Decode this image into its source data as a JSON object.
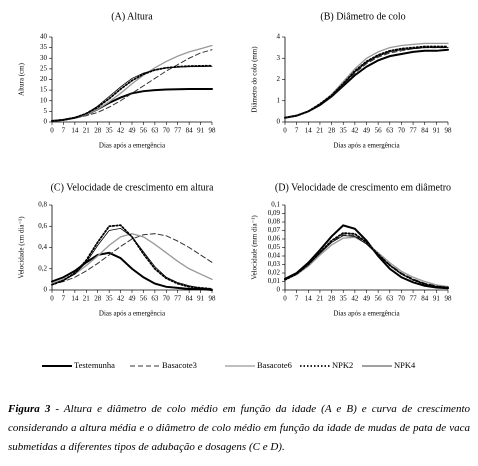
{
  "chart_data": [
    {
      "type": "line",
      "title": "(A) Altura",
      "x_label": "Dias após a emergência",
      "y_label": "Altura (cm)",
      "x": [
        0,
        7,
        14,
        21,
        28,
        35,
        42,
        49,
        56,
        63,
        70,
        77,
        84,
        91,
        98
      ],
      "xlim": [
        0,
        98
      ],
      "xticks": [
        0,
        7,
        14,
        21,
        28,
        35,
        42,
        49,
        56,
        63,
        70,
        77,
        84,
        91,
        98
      ],
      "ylim": [
        0,
        40
      ],
      "yticks": [
        0,
        5,
        10,
        15,
        20,
        25,
        30,
        35,
        40
      ],
      "series": [
        {
          "name": "Testemunha",
          "color": "#000000",
          "style": "solid",
          "linewidth": 2,
          "values": [
            0.5,
            1,
            2,
            3.5,
            6,
            9,
            11.5,
            13.5,
            14.5,
            15,
            15.3,
            15.4,
            15.5,
            15.5,
            15.5
          ]
        },
        {
          "name": "Basacote3",
          "color": "#333333",
          "style": "dashed",
          "linewidth": 1,
          "values": [
            0.5,
            1,
            1.8,
            3,
            4.5,
            7,
            10,
            13.5,
            17,
            20.5,
            24,
            27,
            30,
            32.5,
            34
          ]
        },
        {
          "name": "Basacote6",
          "color": "#999999",
          "style": "solid",
          "linewidth": 1.3,
          "values": [
            0.5,
            1,
            2,
            3.5,
            6,
            9.5,
            13.5,
            18,
            22,
            25.5,
            28.5,
            31,
            33,
            34.5,
            36
          ]
        },
        {
          "name": "NPK2",
          "color": "#000000",
          "style": "dotted",
          "linewidth": 1.8,
          "values": [
            0.5,
            1,
            2,
            4,
            7,
            11,
            15.5,
            19.5,
            22.5,
            24.5,
            25.5,
            26,
            26.3,
            26.4,
            26.5
          ]
        },
        {
          "name": "NPK4",
          "color": "#000000",
          "style": "solid",
          "linewidth": 0.8,
          "values": [
            0.5,
            1,
            2,
            4,
            7.5,
            12,
            16.5,
            20.5,
            23,
            24.5,
            25.5,
            25.8,
            26,
            26.1,
            26.2
          ]
        }
      ]
    },
    {
      "type": "line",
      "title": "(B) Diâmetro de colo",
      "x_label": "Dias após a emergência",
      "y_label": "Diâmetro do colo (mm)",
      "x": [
        0,
        7,
        14,
        21,
        28,
        35,
        42,
        49,
        56,
        63,
        70,
        77,
        84,
        91,
        98
      ],
      "xlim": [
        0,
        98
      ],
      "xticks": [
        0,
        7,
        14,
        21,
        28,
        35,
        42,
        49,
        56,
        63,
        70,
        77,
        84,
        91,
        98
      ],
      "ylim": [
        0,
        4
      ],
      "yticks": [
        0,
        1,
        2,
        3,
        4
      ],
      "series": [
        {
          "color": "#000000",
          "style": "solid",
          "linewidth": 2,
          "values": [
            0.2,
            0.3,
            0.5,
            0.8,
            1.2,
            1.7,
            2.2,
            2.6,
            2.9,
            3.1,
            3.2,
            3.3,
            3.35,
            3.35,
            3.4
          ]
        },
        {
          "color": "#333333",
          "style": "dashed",
          "linewidth": 1,
          "values": [
            0.2,
            0.3,
            0.5,
            0.8,
            1.2,
            1.75,
            2.3,
            2.75,
            3.05,
            3.25,
            3.35,
            3.45,
            3.5,
            3.5,
            3.5
          ]
        },
        {
          "color": "#999999",
          "style": "solid",
          "linewidth": 1.3,
          "values": [
            0.2,
            0.3,
            0.5,
            0.85,
            1.3,
            1.9,
            2.5,
            3.0,
            3.3,
            3.5,
            3.6,
            3.65,
            3.7,
            3.7,
            3.7
          ]
        },
        {
          "color": "#000000",
          "style": "dotted",
          "linewidth": 1.8,
          "values": [
            0.2,
            0.3,
            0.5,
            0.85,
            1.25,
            1.8,
            2.4,
            2.85,
            3.15,
            3.35,
            3.45,
            3.5,
            3.55,
            3.55,
            3.55
          ]
        },
        {
          "color": "#000000",
          "style": "solid",
          "linewidth": 0.8,
          "values": [
            0.2,
            0.3,
            0.5,
            0.8,
            1.2,
            1.8,
            2.35,
            2.8,
            3.1,
            3.3,
            3.4,
            3.45,
            3.5,
            3.5,
            3.5
          ]
        }
      ]
    },
    {
      "type": "line",
      "title": "(C) Velocidade de crescimento em altura",
      "x_label": "Dias após a emergência",
      "y_label": "Velocidade (cm dia⁻¹)",
      "x": [
        0,
        7,
        14,
        21,
        28,
        35,
        42,
        49,
        56,
        63,
        70,
        77,
        84,
        91,
        98
      ],
      "xlim": [
        0,
        98
      ],
      "xticks": [
        0,
        7,
        14,
        21,
        28,
        35,
        42,
        49,
        56,
        63,
        70,
        77,
        84,
        91,
        98
      ],
      "ylim": [
        0,
        0.8
      ],
      "yticks": [
        0,
        {
          "value": 0.2,
          "label": "0,2"
        },
        {
          "value": 0.4,
          "label": "0,4"
        },
        {
          "value": 0.6,
          "label": "0,6"
        },
        {
          "value": 0.8,
          "label": "0,8"
        }
      ],
      "series": [
        {
          "color": "#000000",
          "style": "solid",
          "linewidth": 2,
          "values": [
            0.08,
            0.12,
            0.18,
            0.26,
            0.33,
            0.35,
            0.3,
            0.2,
            0.12,
            0.06,
            0.03,
            0.02,
            0.01,
            0.01,
            0
          ]
        },
        {
          "color": "#333333",
          "style": "dashed",
          "linewidth": 1,
          "values": [
            0.05,
            0.08,
            0.12,
            0.18,
            0.25,
            0.33,
            0.41,
            0.48,
            0.52,
            0.53,
            0.51,
            0.46,
            0.4,
            0.33,
            0.26
          ]
        },
        {
          "color": "#999999",
          "style": "solid",
          "linewidth": 1.3,
          "values": [
            0.06,
            0.1,
            0.15,
            0.23,
            0.32,
            0.42,
            0.5,
            0.53,
            0.5,
            0.43,
            0.35,
            0.27,
            0.2,
            0.15,
            0.1
          ]
        },
        {
          "color": "#000000",
          "style": "dotted",
          "linewidth": 1.8,
          "values": [
            0.05,
            0.09,
            0.16,
            0.28,
            0.45,
            0.6,
            0.61,
            0.5,
            0.34,
            0.2,
            0.11,
            0.06,
            0.03,
            0.02,
            0.01
          ]
        },
        {
          "color": "#000000",
          "style": "solid",
          "linewidth": 0.8,
          "values": [
            0.05,
            0.09,
            0.15,
            0.26,
            0.42,
            0.56,
            0.58,
            0.5,
            0.36,
            0.22,
            0.12,
            0.07,
            0.04,
            0.02,
            0.01
          ]
        }
      ]
    },
    {
      "type": "line",
      "title": "(D) Velocidade de crescimento em diâmetro",
      "x_label": "Dias após a emergência",
      "y_label": "Velocidade (mm dia⁻¹)",
      "x": [
        0,
        7,
        14,
        21,
        28,
        35,
        42,
        49,
        56,
        63,
        70,
        77,
        84,
        91,
        98
      ],
      "xlim": [
        0,
        98
      ],
      "xticks": [
        0,
        7,
        14,
        21,
        28,
        35,
        42,
        49,
        56,
        63,
        70,
        77,
        84,
        91,
        98
      ],
      "ylim": [
        0,
        0.1
      ],
      "yticks": [
        0,
        {
          "value": 0.01,
          "label": "0,01"
        },
        {
          "value": 0.02,
          "label": "0,02"
        },
        {
          "value": 0.03,
          "label": "0,03"
        },
        {
          "value": 0.04,
          "label": "0,04"
        },
        {
          "value": 0.05,
          "label": "0,05"
        },
        {
          "value": 0.06,
          "label": "0,06"
        },
        {
          "value": 0.07,
          "label": "0,07"
        },
        {
          "value": 0.08,
          "label": "0,08"
        },
        {
          "value": 0.09,
          "label": "0,09"
        },
        {
          "value": 0.1,
          "label": "0,1"
        }
      ],
      "series": [
        {
          "color": "#000000",
          "style": "solid",
          "linewidth": 2,
          "values": [
            0.013,
            0.02,
            0.032,
            0.047,
            0.063,
            0.076,
            0.072,
            0.058,
            0.04,
            0.025,
            0.015,
            0.009,
            0.005,
            0.003,
            0.002
          ]
        },
        {
          "color": "#333333",
          "style": "dashed",
          "linewidth": 1,
          "values": [
            0.012,
            0.019,
            0.03,
            0.044,
            0.057,
            0.065,
            0.064,
            0.055,
            0.042,
            0.03,
            0.02,
            0.013,
            0.008,
            0.005,
            0.003
          ]
        },
        {
          "color": "#999999",
          "style": "solid",
          "linewidth": 1.3,
          "values": [
            0.012,
            0.018,
            0.028,
            0.041,
            0.053,
            0.061,
            0.062,
            0.055,
            0.044,
            0.032,
            0.022,
            0.015,
            0.01,
            0.006,
            0.004
          ]
        },
        {
          "color": "#000000",
          "style": "dotted",
          "linewidth": 1.8,
          "values": [
            0.012,
            0.019,
            0.03,
            0.044,
            0.058,
            0.067,
            0.066,
            0.056,
            0.042,
            0.029,
            0.019,
            0.012,
            0.007,
            0.004,
            0.003
          ]
        },
        {
          "color": "#000000",
          "style": "solid",
          "linewidth": 0.8,
          "values": [
            0.012,
            0.019,
            0.03,
            0.043,
            0.056,
            0.064,
            0.063,
            0.054,
            0.041,
            0.029,
            0.019,
            0.012,
            0.007,
            0.004,
            0.003
          ]
        }
      ]
    }
  ],
  "caption_label": "Figura 3",
  "caption": " - Altura e diâmetro de colo médio em função da idade (A e B) e curva de crescimento considerando a altura média e o diâmetro de colo médio em função da idade de mudas de pata de vaca submetidas a diferentes tipos de adubação e dosagens (C e D)."
}
